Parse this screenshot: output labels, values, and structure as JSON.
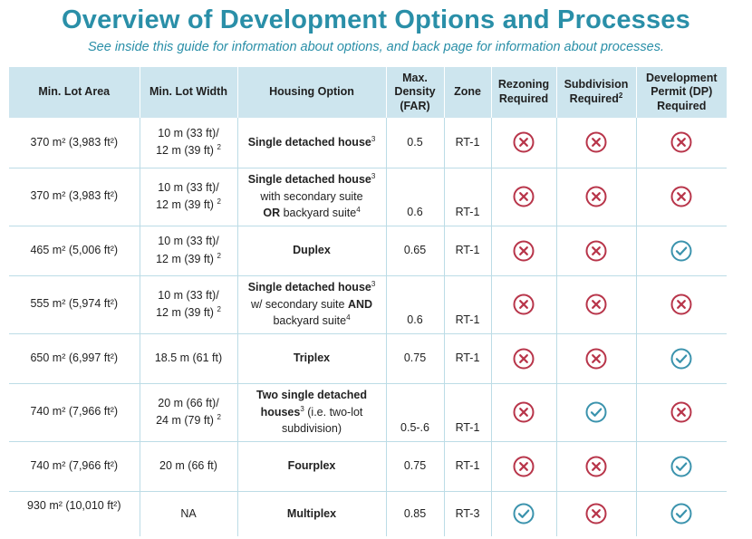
{
  "title": "Overview of Development Options and Processes",
  "subtitle": "See inside this guide for information about options, and back page for information about processes.",
  "headers": {
    "min_lot_area": "Min. Lot Area",
    "min_lot_width": "Min. Lot Width",
    "housing_option": "Housing Option",
    "max_density_l1": "Max.",
    "max_density_l2": "Density",
    "max_density_l3": "(FAR)",
    "zone": "Zone",
    "rezoning_l1": "Rezoning",
    "rezoning_l2": "Required",
    "subdivision_l1": "Subdivision",
    "subdivision_l2": "Required",
    "subdivision_sup": "2",
    "dp_l1": "Development",
    "dp_l2": "Permit (DP)",
    "dp_l3": "Required"
  },
  "colors": {
    "accent": "#2a8fa8",
    "header_bg": "#cde5ee",
    "grid": "#bcdce6",
    "cross": "#b8354a",
    "check": "#3b93ad"
  },
  "icon_legend": {
    "no": "x-circle-icon",
    "yes": "check-circle-icon"
  },
  "rows": [
    {
      "area": "370 m² (3,983 ft²)",
      "width_l1": "10 m (33 ft)/",
      "width_l2": "12 m (39 ft)",
      "width_sup": "2",
      "h1": "Single detached house",
      "h1_sup": "3",
      "density": "0.5",
      "zone": "RT-1",
      "rezoning": "no",
      "subdivision": "no",
      "dp": "no"
    },
    {
      "area": "370 m² (3,983 ft²)",
      "width_l1": "10 m (33  ft)/",
      "width_l2": "12 m (39 ft)",
      "width_sup": "2",
      "h1": "Single detached house",
      "h1_sup": "3",
      "h2": "with secondary suite",
      "h3_bold": "OR",
      "h3": " backyard suite",
      "h3_sup": "4",
      "density": "0.6",
      "zone": "RT-1",
      "rezoning": "no",
      "subdivision": "no",
      "dp": "no"
    },
    {
      "area": "465 m² (5,006 ft²)",
      "width_l1": "10 m (33 ft)/",
      "width_l2": "12 m (39 ft)",
      "width_sup": "2",
      "h1": "Duplex",
      "density": "0.65",
      "zone": "RT-1",
      "rezoning": "no",
      "subdivision": "no",
      "dp": "yes"
    },
    {
      "area": "555 m² (5,974 ft²)",
      "width_l1": "10 m (33 ft)/",
      "width_l2": "12 m (39 ft)",
      "width_sup": "2",
      "h1": "Single detached house",
      "h1_sup": "3",
      "h2a": "w/ secondary suite ",
      "h2b_bold": "AND",
      "h3": "backyard suite",
      "h3_sup": "4",
      "density": "0.6",
      "zone": "RT-1",
      "rezoning": "no",
      "subdivision": "no",
      "dp": "no"
    },
    {
      "area": "650 m² (6,997 ft²)",
      "width": "18.5 m (61 ft)",
      "h1": "Triplex",
      "density": "0.75",
      "zone": "RT-1",
      "rezoning": "no",
      "subdivision": "no",
      "dp": "yes"
    },
    {
      "area": "740 m² (7,966 ft²)",
      "width_l1": "20 m (66 ft)/",
      "width_l2": "24 m (79 ft)",
      "width_sup": "2",
      "h1": "Two single detached",
      "h2a_bold": "houses",
      "h2_sup": "3",
      "h2b": " (i.e. two-lot",
      "h3": "subdivision)",
      "density": "0.5-.6",
      "zone": "RT-1",
      "rezoning": "no",
      "subdivision": "yes",
      "dp": "no"
    },
    {
      "area": "740 m² (7,966 ft²)",
      "width": "20 m (66 ft)",
      "h1": "Fourplex",
      "density": "0.75",
      "zone": "RT-1",
      "rezoning": "no",
      "subdivision": "no",
      "dp": "yes"
    },
    {
      "area": "930 m² (10,010 ft²)",
      "width": "NA",
      "h1": "Multiplex",
      "density": "0.85",
      "zone": "RT-3",
      "rezoning": "yes",
      "subdivision": "no",
      "dp": "yes"
    }
  ]
}
